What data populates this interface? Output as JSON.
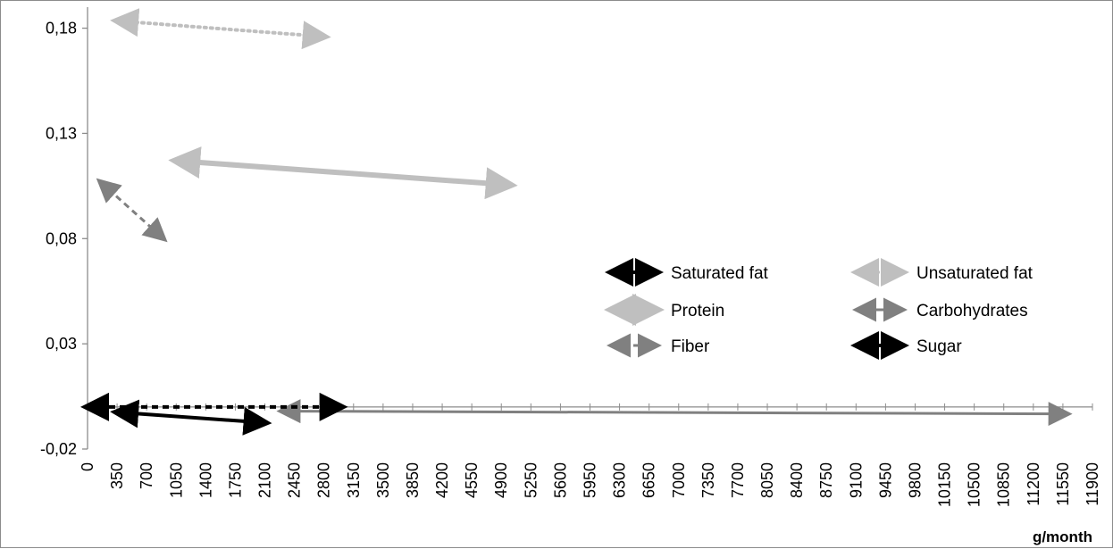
{
  "chart_data": {
    "type": "line",
    "title": "",
    "xlabel": "g/month",
    "ylabel": "",
    "xlim": [
      0,
      11900
    ],
    "ylim": [
      -0.02,
      0.19
    ],
    "x_ticks": [
      0,
      350,
      700,
      1050,
      1400,
      1750,
      2100,
      2450,
      2800,
      3150,
      3500,
      3850,
      4200,
      4550,
      4900,
      5250,
      5600,
      5950,
      6300,
      6650,
      7000,
      7350,
      7700,
      8050,
      8400,
      8750,
      9100,
      9450,
      9800,
      10150,
      10500,
      10850,
      11200,
      11550,
      11900
    ],
    "y_ticks": [
      -0.02,
      0.03,
      0.08,
      0.13,
      0.18
    ],
    "y_tick_labels": [
      "-0,02",
      "0,03",
      "0,08",
      "0,13",
      "0,18"
    ],
    "grid": false,
    "legend_position": "right",
    "series": [
      {
        "name": "Saturated fat",
        "color": "#000000",
        "style": "solid",
        "width": 4,
        "points": [
          [
            350,
            -0.0025
          ],
          [
            2100,
            -0.0075
          ]
        ]
      },
      {
        "name": "Unsaturated fat",
        "color": "#bfbfbf",
        "style": "dotted",
        "width": 4,
        "points": [
          [
            350,
            0.1835
          ],
          [
            2800,
            0.176
          ]
        ]
      },
      {
        "name": "Protein",
        "color": "#bfbfbf",
        "style": "solid",
        "width": 6,
        "points": [
          [
            1050,
            0.117
          ],
          [
            5000,
            0.1055
          ]
        ]
      },
      {
        "name": "Carbohydrates",
        "color": "#808080",
        "style": "solid",
        "width": 3,
        "points": [
          [
            2300,
            -0.002
          ],
          [
            11600,
            -0.0033
          ]
        ]
      },
      {
        "name": "Fiber",
        "color": "#808080",
        "style": "dashed",
        "width": 3,
        "points": [
          [
            150,
            0.107
          ],
          [
            900,
            0.08
          ]
        ]
      },
      {
        "name": "Sugar",
        "color": "#000000",
        "style": "dashed",
        "width": 4,
        "points": [
          [
            0,
            0.0
          ],
          [
            3000,
            0.0
          ]
        ]
      }
    ]
  }
}
